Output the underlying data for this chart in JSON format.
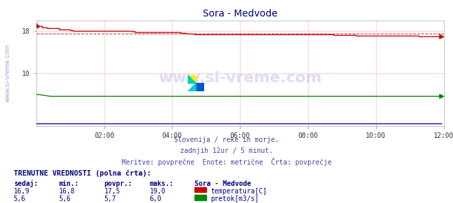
{
  "title": "Sora - Medvode",
  "title_color": "#000080",
  "bg_color": "#ffffff",
  "plot_bg_color": "#ffffff",
  "grid_color_h": "#ffcccc",
  "grid_color_v": "#ffcccc",
  "x_ticks": [
    0,
    24,
    48,
    72,
    96,
    120,
    144
  ],
  "x_tick_labels": [
    "",
    "02:00",
    "04:00",
    "06:00",
    "08:00",
    "10:00",
    "12:00"
  ],
  "x_total_points": 144,
  "ylim": [
    0,
    20.0
  ],
  "y_ticks": [
    0,
    10,
    18
  ],
  "subtitle_lines": [
    "Slovenija / reke in morje.",
    "zadnjih 12ur / 5 minut.",
    "Meritve: povprečne  Enote: metrične  Črta: povprečje"
  ],
  "subtitle_color": "#4444aa",
  "watermark_text": "www.si-vreme.com",
  "watermark_color": "#4444cc",
  "watermark_alpha": 0.25,
  "temp_color": "#cc0000",
  "temp_avg_color": "#cc0000",
  "pretok_color": "#008800",
  "pretok_avg_color": "#008800",
  "visina_color": "#0000cc",
  "table_title": "TRENUTNE VREDNOSTI (polna črta):",
  "table_color": "#000080",
  "col_headers": [
    "sedaj:",
    "min.:",
    "povpr.:",
    "maks.:"
  ],
  "col_header_color": "#000080",
  "station_header": "Sora - Medvode",
  "rows": [
    {
      "sedaj": "16,9",
      "min": "16,8",
      "povpr": "17,5",
      "maks": "19,0",
      "color": "#cc0000",
      "label": "temperatura[C]"
    },
    {
      "sedaj": "5,6",
      "min": "5,6",
      "povpr": "5,7",
      "maks": "6,0",
      "color": "#008800",
      "label": "pretok[m3/s]"
    }
  ],
  "temp_data_start": 19.0,
  "temp_data_end": 16.9,
  "temp_avg": 17.5,
  "pretok_data_start": 6.0,
  "pretok_data_const": 5.6,
  "visina_data_const": 0.5,
  "ylabel_text": "www.si-vreme.com",
  "ylabel_color": "#4444aa",
  "ylabel_alpha": 0.5
}
